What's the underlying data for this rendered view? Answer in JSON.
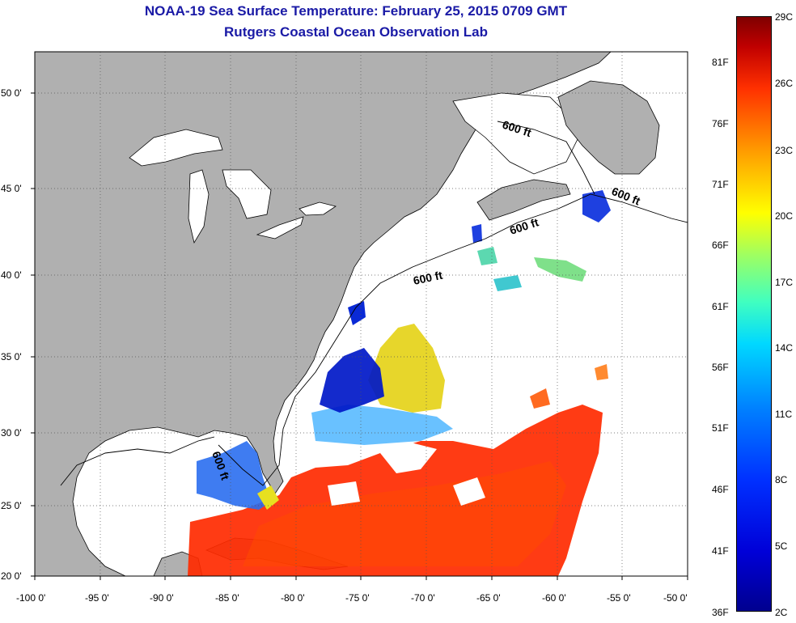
{
  "title": {
    "line1": "NOAA-19 Sea Surface Temperature:  February 25, 2015 0709 GMT",
    "line2": "Rutgers Coastal Ocean Observation Lab"
  },
  "x_ticks": [
    "-100 0'",
    "-95 0'",
    "-90 0'",
    "-85 0'",
    "-80 0'",
    "-75 0'",
    "-70 0'",
    "-65 0'",
    "-60 0'",
    "-55 0'",
    "-50 0'"
  ],
  "y_ticks": [
    "50 0'",
    "45 0'",
    "40 0'",
    "35 0'",
    "30 0'",
    "25 0'",
    "20 0'"
  ],
  "contour_labels": [
    "600 ft",
    "600 ft",
    "600 ft",
    "600 ft",
    "600 ft"
  ],
  "colorbar": {
    "celsius": [
      "29C",
      "26C",
      "23C",
      "20C",
      "17C",
      "14C",
      "11C",
      "8C",
      "5C",
      "2C"
    ],
    "fahrenheit": [
      "81F",
      "76F",
      "71F",
      "66F",
      "61F",
      "56F",
      "51F",
      "46F",
      "41F",
      "36F"
    ]
  },
  "colors": {
    "land": "#b0b0b0",
    "ocean_no_data": "#ffffff",
    "title": "#1a1aa6",
    "warm": "#ff2a00",
    "cool": "#0010c8"
  }
}
